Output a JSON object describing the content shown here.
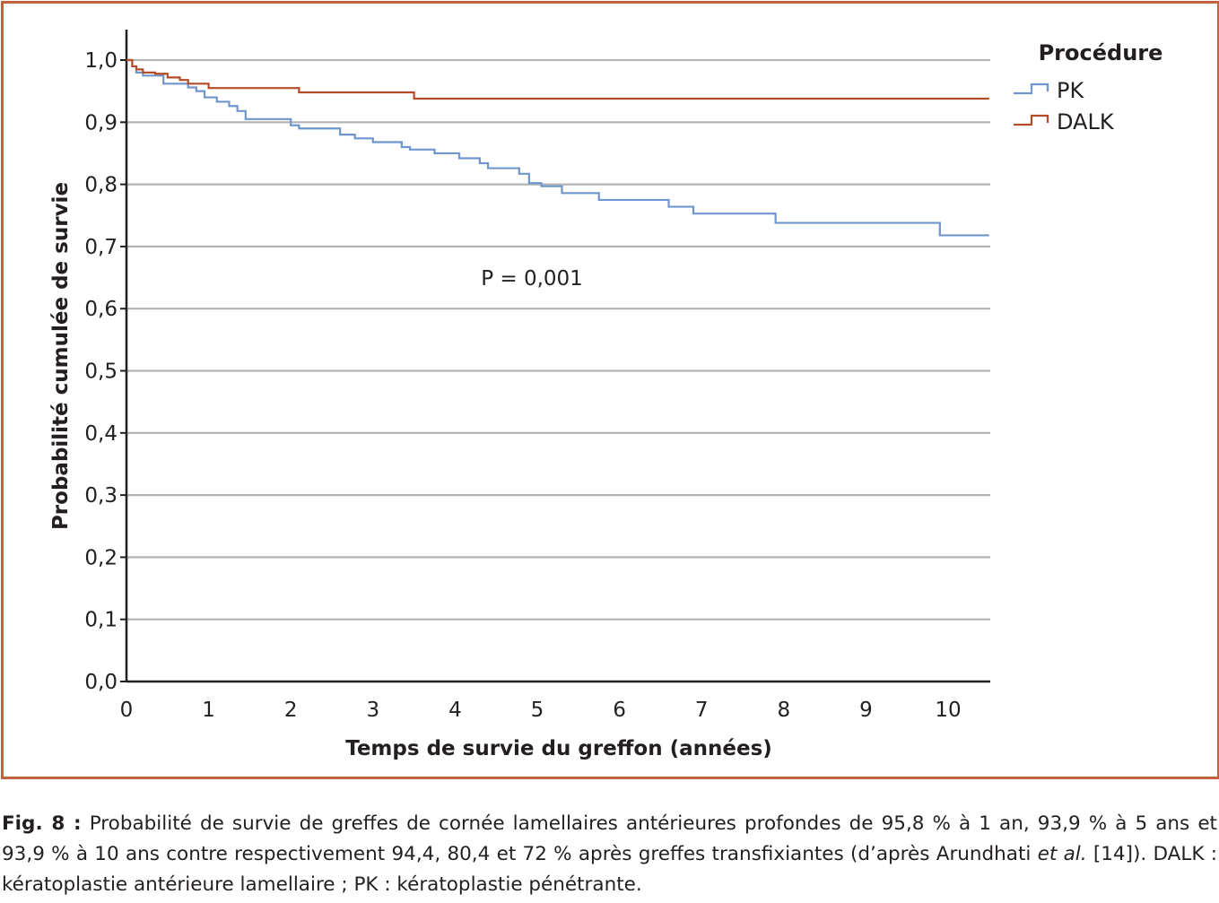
{
  "chart_data": {
    "type": "line",
    "step": true,
    "xlabel": "Temps de survie du greffon (années)",
    "ylabel": "Probabilité cumulée de survie",
    "xlim": [
      0,
      10.5
    ],
    "ylim": [
      0,
      1.0
    ],
    "x_ticks": [
      0,
      1,
      2,
      3,
      4,
      5,
      6,
      7,
      8,
      9,
      10
    ],
    "y_ticks": [
      0.0,
      0.1,
      0.2,
      0.3,
      0.4,
      0.5,
      0.6,
      0.7,
      0.8,
      0.9,
      1.0
    ],
    "x_tick_labels": [
      "0",
      "1",
      "2",
      "3",
      "4",
      "5",
      "6",
      "7",
      "8",
      "9",
      "10"
    ],
    "y_tick_labels": [
      "0,0",
      "0,1",
      "0,2",
      "0,3",
      "0,4",
      "0,5",
      "0,6",
      "0,7",
      "0,8",
      "0,9",
      "1,0"
    ],
    "grid": "horizontal",
    "legend_title": "Procédure",
    "legend_position": "top-right",
    "annotation": "P = 0,001",
    "series": [
      {
        "name": "PK",
        "color": "#6f96cc",
        "x": [
          0,
          0.07,
          0.12,
          0.2,
          0.45,
          0.75,
          0.85,
          0.95,
          1.1,
          1.25,
          1.35,
          1.45,
          2.0,
          2.1,
          2.6,
          2.78,
          3.0,
          3.35,
          3.45,
          3.75,
          4.05,
          4.3,
          4.4,
          4.78,
          4.9,
          5.05,
          5.3,
          5.6,
          5.75,
          6.2,
          6.6,
          6.9,
          7.5,
          7.9,
          8.8,
          9.9,
          10.5
        ],
        "y": [
          1.0,
          0.99,
          0.98,
          0.975,
          0.962,
          0.956,
          0.95,
          0.94,
          0.933,
          0.926,
          0.918,
          0.905,
          0.895,
          0.89,
          0.88,
          0.874,
          0.868,
          0.86,
          0.856,
          0.85,
          0.842,
          0.834,
          0.826,
          0.817,
          0.802,
          0.797,
          0.786,
          0.786,
          0.775,
          0.775,
          0.764,
          0.753,
          0.753,
          0.738,
          0.738,
          0.718,
          0.718
        ]
      },
      {
        "name": "DALK",
        "color": "#b54c28",
        "x": [
          0,
          0.07,
          0.12,
          0.2,
          0.35,
          0.5,
          0.65,
          0.75,
          1.0,
          2.1,
          3.5,
          10.5
        ],
        "y": [
          1.0,
          0.99,
          0.985,
          0.98,
          0.978,
          0.972,
          0.968,
          0.962,
          0.955,
          0.948,
          0.938,
          0.938
        ]
      }
    ]
  },
  "caption": {
    "label": "Fig. 8 :",
    "text_1": " Probabilité de survie de greffes de cornée lamellaires antérieures profondes de 95,8 % à 1 an, 93,9 % à 5 ans et 93,9 % à 10 ans contre respectivement 94,4, 80,4 et 72 % après greffes transfixiantes (d’après Arundhati ",
    "italic": "et al.",
    "text_2": " [14]). DALK : kératoplastie antérieure lamellaire ; PK : kératoplastie pénétrante."
  }
}
